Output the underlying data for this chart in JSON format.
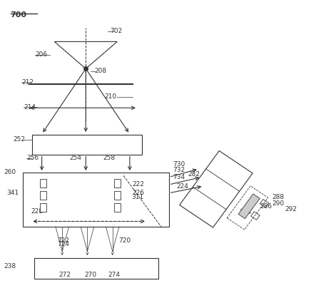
{
  "bg_color": "#ffffff",
  "line_color": "#333333"
}
